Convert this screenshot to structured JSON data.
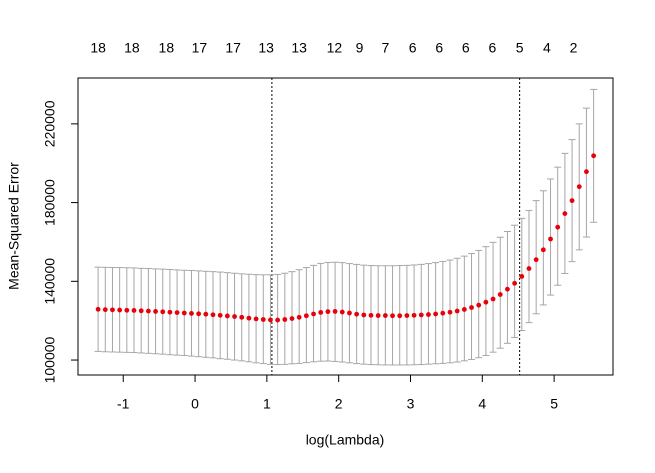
{
  "chart_data": {
    "type": "errorbar",
    "xlabel": "log(Lambda)",
    "ylabel": "Mean-Squared Error",
    "xlim": [
      -1.63,
      5.82
    ],
    "ylim": [
      92400,
      243300
    ],
    "xticks": [
      -1,
      0,
      1,
      2,
      3,
      4,
      5
    ],
    "yticks": [
      100000,
      140000,
      180000,
      220000
    ],
    "top_ticks": [
      {
        "value": -1.35,
        "label": "18"
      },
      {
        "value": -0.88,
        "label": "18"
      },
      {
        "value": -0.4,
        "label": "18"
      },
      {
        "value": 0.06,
        "label": "17"
      },
      {
        "value": 0.53,
        "label": "17"
      },
      {
        "value": 0.99,
        "label": "13"
      },
      {
        "value": 1.45,
        "label": "13"
      },
      {
        "value": 1.94,
        "label": "12"
      },
      {
        "value": 2.29,
        "label": "9"
      },
      {
        "value": 2.65,
        "label": "7"
      },
      {
        "value": 3.03,
        "label": "6"
      },
      {
        "value": 3.4,
        "label": "6"
      },
      {
        "value": 3.77,
        "label": "6"
      },
      {
        "value": 4.14,
        "label": "6"
      },
      {
        "value": 4.52,
        "label": "5"
      },
      {
        "value": 4.9,
        "label": "4"
      },
      {
        "value": 5.27,
        "label": "2"
      }
    ],
    "vlines": [
      1.07,
      4.52
    ],
    "point_color": "#e8000b",
    "bar_color": "#a6a6a6",
    "x": [
      -1.35,
      -1.25,
      -1.15,
      -1.05,
      -0.95,
      -0.85,
      -0.75,
      -0.65,
      -0.55,
      -0.45,
      -0.35,
      -0.25,
      -0.15,
      -0.05,
      0.05,
      0.15,
      0.25,
      0.35,
      0.45,
      0.55,
      0.65,
      0.75,
      0.85,
      0.95,
      1.05,
      1.15,
      1.25,
      1.35,
      1.45,
      1.55,
      1.65,
      1.75,
      1.85,
      1.95,
      2.05,
      2.15,
      2.25,
      2.35,
      2.45,
      2.55,
      2.65,
      2.75,
      2.85,
      2.95,
      3.05,
      3.15,
      3.25,
      3.35,
      3.45,
      3.55,
      3.65,
      3.75,
      3.85,
      3.95,
      4.05,
      4.15,
      4.25,
      4.35,
      4.45,
      4.55,
      4.65,
      4.75,
      4.85,
      4.95,
      5.05,
      5.15,
      5.25,
      5.35,
      5.45,
      5.55
    ],
    "values": [
      125800,
      125600,
      125500,
      125400,
      125300,
      125200,
      125000,
      124900,
      124700,
      124500,
      124300,
      124100,
      123900,
      123700,
      123500,
      123300,
      123000,
      122700,
      122400,
      122100,
      121700,
      121300,
      120900,
      120600,
      120400,
      120300,
      120600,
      121100,
      121700,
      122500,
      123400,
      124200,
      124600,
      124700,
      124400,
      123900,
      123300,
      122900,
      122700,
      122600,
      122600,
      122500,
      122500,
      122600,
      122700,
      122900,
      123100,
      123400,
      123800,
      124300,
      124900,
      125700,
      126700,
      127900,
      129400,
      131000,
      133300,
      136000,
      139000,
      142500,
      146500,
      151000,
      156000,
      161500,
      167500,
      174400,
      181000,
      188100,
      195700,
      203800
    ],
    "upper": [
      147200,
      147100,
      147000,
      147000,
      146900,
      146800,
      146600,
      146500,
      146300,
      146200,
      146000,
      145800,
      145600,
      145500,
      145300,
      145100,
      144900,
      144700,
      144400,
      144100,
      143800,
      143600,
      143400,
      143300,
      143300,
      143500,
      144100,
      144900,
      145900,
      147000,
      148100,
      149100,
      149600,
      149700,
      149500,
      149000,
      148600,
      148200,
      148000,
      147900,
      147900,
      147900,
      148000,
      148100,
      148300,
      148600,
      149000,
      149500,
      150100,
      150800,
      151700,
      152800,
      154100,
      155700,
      157600,
      159800,
      162400,
      165300,
      168500,
      172000,
      176000,
      181000,
      186000,
      192000,
      198000,
      205000,
      212000,
      220000,
      228000,
      237500
    ],
    "lower": [
      104400,
      104200,
      104100,
      104000,
      103900,
      103800,
      103600,
      103400,
      103200,
      103000,
      102700,
      102500,
      102300,
      102000,
      101700,
      101400,
      101100,
      100700,
      100400,
      100000,
      99600,
      99100,
      98600,
      98200,
      97800,
      97700,
      97800,
      98100,
      98300,
      98700,
      99100,
      99400,
      99500,
      99300,
      99000,
      98600,
      98200,
      97900,
      97700,
      97600,
      97500,
      97500,
      97500,
      97500,
      97600,
      97700,
      97900,
      98100,
      98300,
      98600,
      99000,
      99600,
      100300,
      101200,
      102300,
      104000,
      106000,
      108500,
      111500,
      115000,
      119000,
      123500,
      128000,
      133000,
      138000,
      144000,
      150000,
      156000,
      162500,
      170000
    ]
  }
}
